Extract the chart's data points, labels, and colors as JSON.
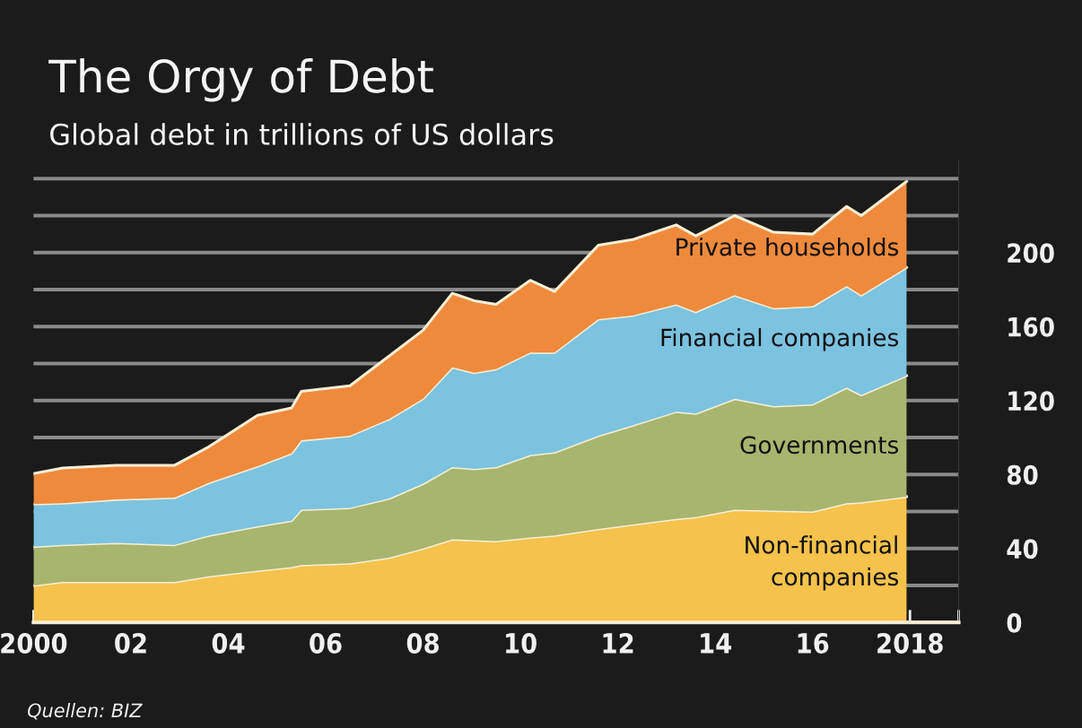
{
  "chart_data": {
    "type": "area",
    "stacked": true,
    "title": "The Orgy of Debt",
    "subtitle": "Global debt in trillions of US dollars",
    "annotations": [
      "Quellen: BIZ"
    ],
    "x": [
      2000.0,
      2000.6,
      2001.7,
      2002.9,
      2003.6,
      2004.6,
      2005.3,
      2005.5,
      2006.5,
      2007.3,
      2008.0,
      2008.6,
      2009.05,
      2009.5,
      2010.2,
      2010.7,
      2011.6,
      2012.3,
      2013.2,
      2013.6,
      2014.4,
      2015.2,
      2016.0,
      2016.7,
      2017.0,
      2017.93
    ],
    "series": [
      {
        "name": "Non-financial\ncompanies",
        "color": "#f5c24c",
        "values": [
          20,
          22,
          22,
          22,
          25,
          28,
          30,
          31,
          32,
          35,
          40,
          45,
          44.5,
          44,
          46,
          47,
          50.5,
          53,
          56,
          57,
          61,
          60.5,
          60,
          64.5,
          65,
          68
        ]
      },
      {
        "name": "Governments",
        "color": "#a8b56e",
        "values": [
          21,
          20,
          21,
          20,
          22,
          24,
          25,
          30,
          30,
          32,
          35,
          39,
          38.5,
          40,
          44.5,
          45,
          50.5,
          53.5,
          58,
          56,
          60,
          56.5,
          58,
          62.5,
          58,
          65.5
        ]
      },
      {
        "name": "Financial companies",
        "color": "#7cc3e0",
        "values": [
          23,
          22.5,
          23.5,
          25.5,
          28.5,
          32.5,
          36.5,
          37.5,
          39,
          43,
          46,
          54,
          52,
          53,
          55.5,
          54,
          63,
          59.5,
          58,
          55,
          56,
          53,
          53,
          55,
          54,
          58.5
        ]
      },
      {
        "name": "Private households",
        "color": "#ef8a3c",
        "values": [
          16.5,
          19,
          18.5,
          17.5,
          19.5,
          27.5,
          24.5,
          26.5,
          27,
          34,
          37,
          40,
          39,
          35,
          39,
          33,
          40,
          41,
          43,
          41,
          43,
          41,
          39,
          43,
          43,
          46.5
        ]
      }
    ],
    "xlim": [
      2000,
      2019
    ],
    "xticks": [
      {
        "value": 2000,
        "label": "2000"
      },
      {
        "value": 2001,
        "label": null
      },
      {
        "value": 2002,
        "label": "02"
      },
      {
        "value": 2003,
        "label": null
      },
      {
        "value": 2004,
        "label": "04"
      },
      {
        "value": 2005,
        "label": null
      },
      {
        "value": 2006,
        "label": "06"
      },
      {
        "value": 2007,
        "label": null
      },
      {
        "value": 2008,
        "label": "08"
      },
      {
        "value": 2009,
        "label": null
      },
      {
        "value": 2010,
        "label": "10"
      },
      {
        "value": 2011,
        "label": null
      },
      {
        "value": 2012,
        "label": "12"
      },
      {
        "value": 2013,
        "label": null
      },
      {
        "value": 2014,
        "label": "14"
      },
      {
        "value": 2015,
        "label": null
      },
      {
        "value": 2016,
        "label": "16"
      },
      {
        "value": 2017,
        "label": null
      },
      {
        "value": 2018,
        "label": "2018"
      },
      {
        "value": 2019,
        "label": null
      }
    ],
    "ylim": [
      0,
      250
    ],
    "yticks": [
      0,
      {
        "value": 20,
        "label": null
      },
      40,
      {
        "value": 60,
        "label": null
      },
      80,
      {
        "value": 100,
        "label": null
      },
      120,
      {
        "value": 140,
        "label": null
      },
      160,
      {
        "value": 180,
        "label": null
      },
      200,
      {
        "value": 220,
        "label": null
      },
      {
        "value": 240,
        "label": null
      }
    ],
    "grid": "y",
    "legend": false
  }
}
